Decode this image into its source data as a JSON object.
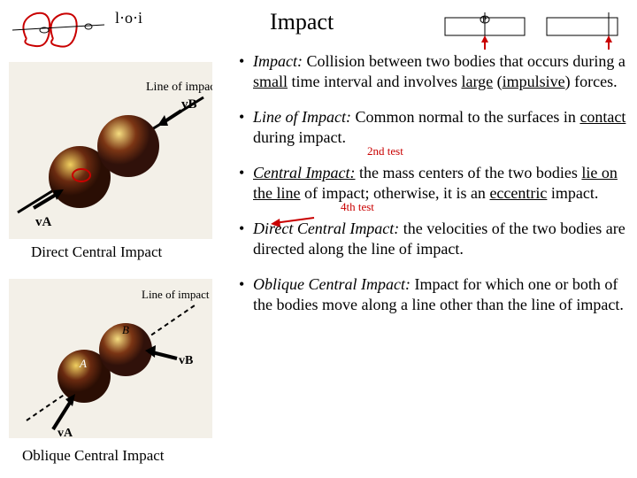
{
  "title": "Impact",
  "top_left_sketch": {
    "stroke": "#c90000",
    "label_font": "cursive",
    "label_text": "l·o·i",
    "ellipse_stroke": "#000000"
  },
  "top_right_sketch": {
    "box_stroke": "#000000",
    "arrow_stroke": "#c90000",
    "label_P": "P"
  },
  "figures": {
    "direct": {
      "caption": "Direct Central Impact",
      "line_label": "Line of impact",
      "v_labels": [
        "vA",
        "vB"
      ],
      "ball_colors": [
        "#5b1f0c",
        "#6a2a10"
      ],
      "highlight": "#f0d060",
      "bg": "#f3f0e8"
    },
    "oblique": {
      "caption": "Oblique Central Impact",
      "line_label": "Line of impact",
      "v_labels": [
        "vA",
        "vB"
      ],
      "point_labels": [
        "A",
        "B"
      ],
      "ball_colors": [
        "#5b1f0c",
        "#6a2a10"
      ],
      "bg": "#f3f0e8"
    }
  },
  "bullets": [
    {
      "term": "Impact:",
      "body_html": "Collision between two bodies that occurs during a <span class='u'>small</span> time interval and involves <span class='u'>large</span> (<span class='u'>impulsive</span>) forces."
    },
    {
      "term": "Line of Impact:",
      "body_html": "Common normal to the surfaces in <span class='u'>contact</span> during impact.",
      "annotation": "2nd test"
    },
    {
      "term": "Central Impact:",
      "body_html": "the mass centers of the two bodies <span class='u'>lie on the line</span> of impact;  otherwise, it is an <span class='u'>eccentric</span> impact.",
      "annotation": "4th test"
    },
    {
      "term": "Direct Central Impact:",
      "body_html": "the velocities of the two bodies are directed along the line of impact."
    },
    {
      "term": "Oblique Central Impact:",
      "body_html": "Impact for which one or both of the bodies move along a line other than the line of impact."
    }
  ],
  "colors": {
    "text": "#000000",
    "annotation_red": "#c90000",
    "background": "#ffffff"
  },
  "fonts": {
    "title_size_pt": 26,
    "body_size_pt": 18,
    "caption_size_pt": 17,
    "family": "Times New Roman"
  }
}
